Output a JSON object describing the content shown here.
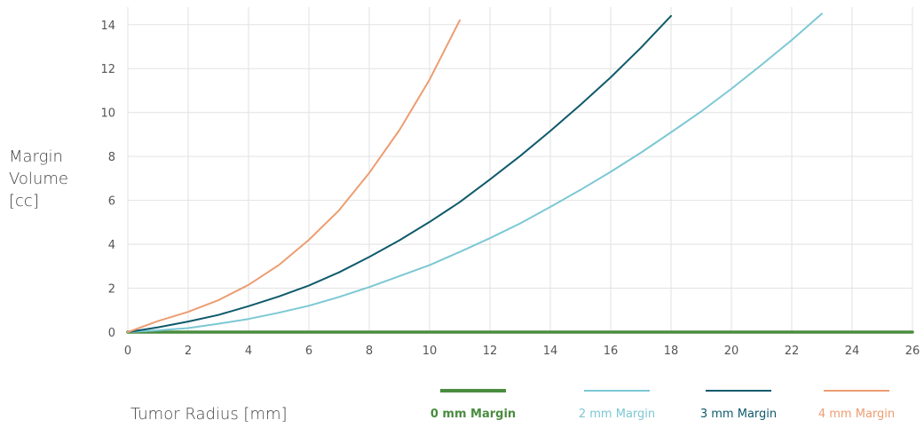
{
  "chart_data": {
    "type": "line",
    "title": "",
    "xlabel": "Tumor Radius [mm]",
    "ylabel_lines": [
      "Margin",
      "Volume",
      "[cc]"
    ],
    "xlim": [
      0,
      26
    ],
    "ylim": [
      0,
      14.8
    ],
    "xticks": [
      0,
      2,
      4,
      6,
      8,
      10,
      12,
      14,
      16,
      18,
      20,
      22,
      24,
      26
    ],
    "yticks": [
      0,
      2,
      4,
      6,
      8,
      10,
      12,
      14
    ],
    "grid": true,
    "legend_position": "bottom-right",
    "series": [
      {
        "name": "0 mm Margin",
        "color": "#4a8c3f",
        "bold": true,
        "points": [
          [
            0,
            0
          ],
          [
            26,
            0
          ]
        ]
      },
      {
        "name": "2 mm Margin",
        "color": "#7cc8d4",
        "bold": false,
        "points": [
          [
            0,
            0
          ],
          [
            1,
            0.08
          ],
          [
            2,
            0.18
          ],
          [
            3,
            0.38
          ],
          [
            4,
            0.6
          ],
          [
            5,
            0.88
          ],
          [
            6,
            1.2
          ],
          [
            7,
            1.6
          ],
          [
            8,
            2.05
          ],
          [
            9,
            2.55
          ],
          [
            10,
            3.05
          ],
          [
            11,
            3.65
          ],
          [
            12,
            4.28
          ],
          [
            13,
            4.95
          ],
          [
            14,
            5.7
          ],
          [
            15,
            6.48
          ],
          [
            16,
            7.3
          ],
          [
            17,
            8.17
          ],
          [
            18,
            9.1
          ],
          [
            19,
            10.05
          ],
          [
            20,
            11.08
          ],
          [
            21,
            12.17
          ],
          [
            22,
            13.3
          ],
          [
            23,
            14.5
          ]
        ]
      },
      {
        "name": "3 mm Margin",
        "color": "#0f5a6b",
        "bold": false,
        "points": [
          [
            0,
            0
          ],
          [
            1,
            0.22
          ],
          [
            2,
            0.48
          ],
          [
            3,
            0.78
          ],
          [
            4,
            1.18
          ],
          [
            5,
            1.62
          ],
          [
            6,
            2.12
          ],
          [
            7,
            2.72
          ],
          [
            8,
            3.42
          ],
          [
            9,
            4.18
          ],
          [
            10,
            5.02
          ],
          [
            11,
            5.92
          ],
          [
            12,
            6.95
          ],
          [
            13,
            8.02
          ],
          [
            14,
            9.16
          ],
          [
            15,
            10.35
          ],
          [
            16,
            11.6
          ],
          [
            17,
            12.95
          ],
          [
            18,
            14.4
          ]
        ]
      },
      {
        "name": "4 mm Margin",
        "color": "#ec9d72",
        "bold": false,
        "points": [
          [
            0,
            0
          ],
          [
            1,
            0.5
          ],
          [
            2,
            0.92
          ],
          [
            3,
            1.45
          ],
          [
            4,
            2.15
          ],
          [
            5,
            3.05
          ],
          [
            6,
            4.2
          ],
          [
            7,
            5.55
          ],
          [
            8,
            7.25
          ],
          [
            9,
            9.2
          ],
          [
            10,
            11.5
          ],
          [
            11,
            14.2
          ]
        ]
      }
    ]
  }
}
